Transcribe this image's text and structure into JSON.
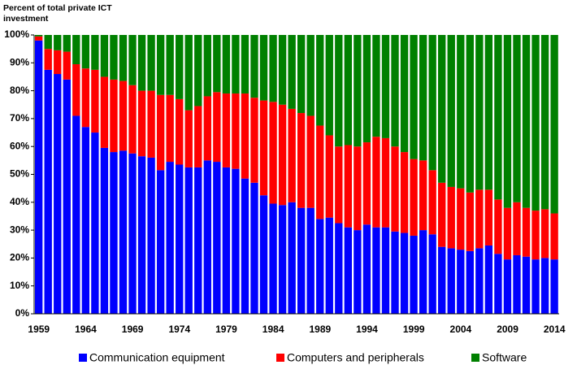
{
  "chart_data": {
    "type": "stacked_bar",
    "y_label": "Percent of total private ICT investment",
    "categories": [
      "1959",
      null,
      null,
      null,
      null,
      "1964",
      null,
      null,
      null,
      null,
      "1969",
      null,
      null,
      null,
      null,
      "1974",
      null,
      null,
      null,
      null,
      "1979",
      null,
      null,
      null,
      null,
      "1984",
      null,
      null,
      null,
      null,
      "1989",
      null,
      null,
      null,
      null,
      "1994",
      null,
      null,
      null,
      null,
      "1999",
      null,
      null,
      null,
      null,
      "2004",
      null,
      null,
      null,
      null,
      "2009",
      null,
      null,
      null,
      null,
      "2014"
    ],
    "series": [
      {
        "name": "Communication equipment",
        "color": "#0000ff",
        "values": [
          98,
          87.5,
          86,
          84,
          71,
          67,
          65,
          59.5,
          58,
          58.5,
          57.5,
          56.5,
          56,
          51.5,
          54.5,
          53.5,
          52.5,
          52.5,
          55,
          54.5,
          52.5,
          52,
          48.5,
          47,
          42.5,
          39.5,
          39,
          40,
          38,
          38,
          34,
          34.5,
          32.5,
          31,
          30,
          32,
          31,
          31,
          29.5,
          29,
          28,
          30,
          28.5,
          24,
          23.5,
          23,
          22.5,
          23.5,
          24.5,
          21.5,
          19.5,
          21,
          20.5,
          19.5,
          20,
          19.5
        ]
      },
      {
        "name": "Computers and peripherals",
        "color": "#ff0000",
        "values": [
          1.5,
          7.5,
          8.5,
          10,
          18.5,
          21,
          22.5,
          25.5,
          26,
          25,
          24.5,
          23.5,
          24,
          27,
          24,
          23.5,
          20.5,
          22,
          23,
          25,
          26.5,
          27,
          30.5,
          30.5,
          34,
          36.5,
          36,
          33.5,
          34,
          33,
          33.5,
          29.5,
          27.5,
          29.5,
          30,
          29.5,
          32.5,
          32,
          30.5,
          29,
          27.5,
          25,
          23,
          23,
          22,
          22,
          21,
          21,
          20,
          19.5,
          18.5,
          19,
          17.5,
          17.5,
          17.5,
          16.5
        ]
      },
      {
        "name": "Software",
        "color": "#008000",
        "values": [
          0.5,
          5,
          5.5,
          6,
          10.5,
          12,
          12.5,
          15,
          16,
          16.5,
          18,
          20,
          20,
          21.5,
          21.5,
          23,
          27,
          25.5,
          22,
          20.5,
          21,
          21,
          21,
          22.5,
          23.5,
          24,
          25,
          26.5,
          28,
          29,
          32.5,
          36,
          40,
          39.5,
          40,
          38.5,
          36.5,
          37,
          40,
          42,
          44.5,
          45,
          48.5,
          53,
          54.5,
          55,
          56.5,
          55.5,
          55.5,
          59,
          62,
          60,
          62,
          63,
          62.5,
          64
        ]
      }
    ],
    "ylim": [
      0,
      100
    ],
    "yticks": [
      {
        "value": 0,
        "label": "0%"
      },
      {
        "value": 10,
        "label": "10%"
      },
      {
        "value": 20,
        "label": "20%"
      },
      {
        "value": 30,
        "label": "30%"
      },
      {
        "value": 40,
        "label": "40%"
      },
      {
        "value": 50,
        "label": "50%"
      },
      {
        "value": 60,
        "label": "60%"
      },
      {
        "value": 70,
        "label": "70%"
      },
      {
        "value": 80,
        "label": "80%"
      },
      {
        "value": 90,
        "label": "90%"
      },
      {
        "value": 100,
        "label": "100%"
      }
    ]
  }
}
